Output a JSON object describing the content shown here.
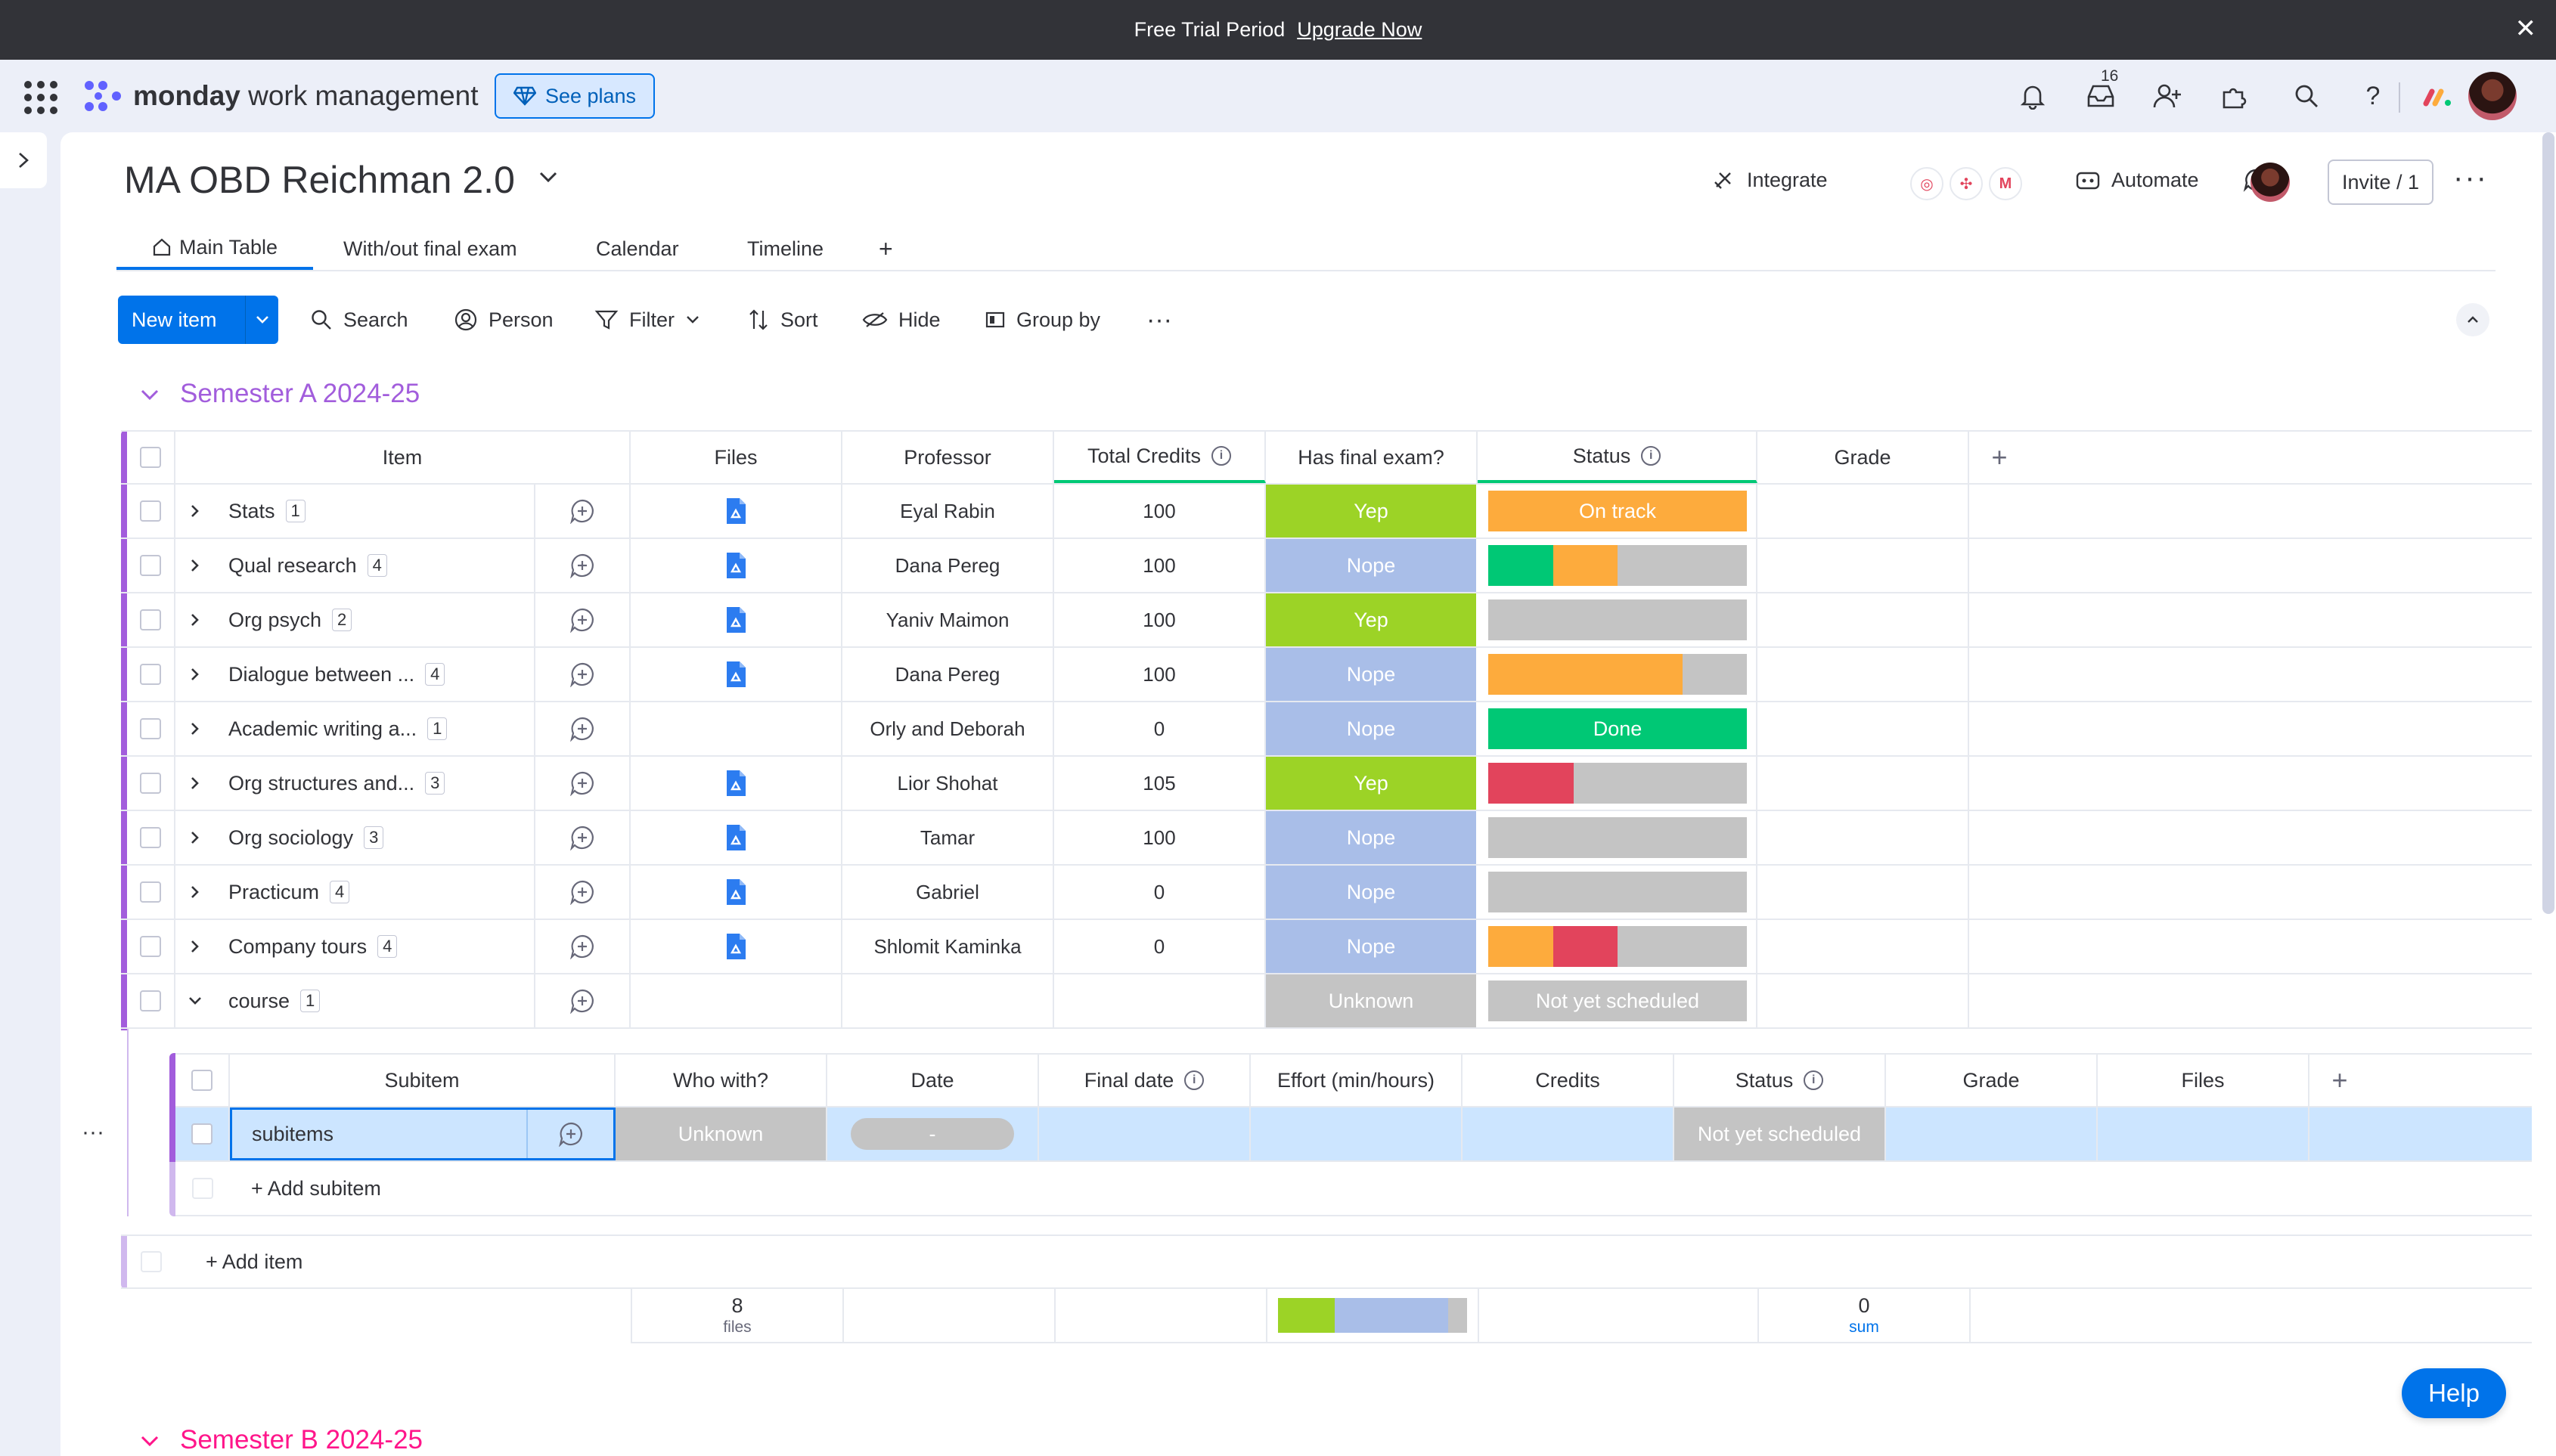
{
  "trial_banner": {
    "text": "Free Trial Period",
    "link": "Upgrade Now"
  },
  "topnav": {
    "brand_bold": "monday",
    "brand_rest": " work management",
    "see_plans": "See plans",
    "inbox_badge": "16",
    "icons": [
      "apps-grid-icon",
      "bell-icon",
      "inbox-icon",
      "invite-members-icon",
      "puzzle-icon",
      "search-icon",
      "help-icon",
      "monday-logo-icon"
    ]
  },
  "board": {
    "title": "MA OBD Reichman 2.0",
    "integrate_label": "Integrate",
    "automate_label": "Automate",
    "invite_label": "Invite / 1",
    "tabs": [
      {
        "label": "Main Table"
      },
      {
        "label": "With/out final exam"
      },
      {
        "label": "Calendar"
      },
      {
        "label": "Timeline"
      },
      {
        "label": "+"
      }
    ]
  },
  "toolbar": {
    "new_item": "New item",
    "search": "Search",
    "person": "Person",
    "filter": "Filter",
    "sort": "Sort",
    "hide": "Hide",
    "group_by": "Group by"
  },
  "colors": {
    "accent": "#0073ea",
    "group_a": "#a25ddc",
    "group_b": "#ff158a",
    "green": "#00c875",
    "lime": "#9cd326",
    "orange": "#fdab3d",
    "red": "#e2445c",
    "grey": "#c4c4c4",
    "nope": "#a9bee8"
  },
  "group_a": {
    "title": "Semester A 2024-25",
    "columns": [
      "Item",
      "Files",
      "Professor",
      "Total Credits",
      "Has final exam?",
      "Status",
      "Grade"
    ],
    "rows": [
      {
        "name": "Stats",
        "count": "1",
        "file": true,
        "professor": "Eyal Rabin",
        "credits": "100",
        "exam": "Yep",
        "status_label": "On track",
        "status_color": "orange"
      },
      {
        "name": "Qual research",
        "count": "4",
        "file": true,
        "professor": "Dana Pereg",
        "credits": "100",
        "exam": "Nope",
        "status_label": "",
        "status_segments": [
          [
            "green",
            0.25
          ],
          [
            "orange",
            0.25
          ],
          [
            "grey",
            0.5
          ]
        ]
      },
      {
        "name": "Org psych",
        "count": "2",
        "file": true,
        "professor": "Yaniv Maimon",
        "credits": "100",
        "exam": "Yep",
        "status_label": "",
        "status_segments": [
          [
            "grey",
            1
          ]
        ]
      },
      {
        "name": "Dialogue between ...",
        "count": "4",
        "file": true,
        "professor": "Dana Pereg",
        "credits": "100",
        "exam": "Nope",
        "status_label": "",
        "status_segments": [
          [
            "orange",
            0.75
          ],
          [
            "grey",
            0.25
          ]
        ]
      },
      {
        "name": "Academic writing a...",
        "count": "1",
        "file": false,
        "professor": "Orly and Deborah",
        "credits": "0",
        "exam": "Nope",
        "status_label": "Done",
        "status_color": "green"
      },
      {
        "name": "Org structures and...",
        "count": "3",
        "file": true,
        "professor": "Lior Shohat",
        "credits": "105",
        "exam": "Yep",
        "status_label": "",
        "status_segments": [
          [
            "red",
            0.33
          ],
          [
            "grey",
            0.67
          ]
        ]
      },
      {
        "name": "Org sociology",
        "count": "3",
        "file": true,
        "professor": "Tamar",
        "credits": "100",
        "exam": "Nope",
        "status_label": "",
        "status_segments": [
          [
            "grey",
            1
          ]
        ]
      },
      {
        "name": "Practicum",
        "count": "4",
        "file": true,
        "professor": "Gabriel",
        "credits": "0",
        "exam": "Nope",
        "status_label": "",
        "status_segments": [
          [
            "grey",
            1
          ]
        ]
      },
      {
        "name": "Company tours",
        "count": "4",
        "file": true,
        "professor": "Shlomit Kaminka",
        "credits": "0",
        "exam": "Nope",
        "status_label": "",
        "status_segments": [
          [
            "orange",
            0.25
          ],
          [
            "red",
            0.25
          ],
          [
            "grey",
            0.5
          ]
        ]
      },
      {
        "name": "course",
        "count": "1",
        "file": false,
        "professor": "",
        "credits": "",
        "exam": "Unknown",
        "status_label": "Not yet scheduled",
        "status_color": "grey",
        "expanded": true
      }
    ],
    "subitems": {
      "columns": [
        "Subitem",
        "Who with?",
        "Date",
        "Final date",
        "Effort (min/hours)",
        "Credits",
        "Status",
        "Grade",
        "Files"
      ],
      "rows": [
        {
          "name": "subitems",
          "who": "Unknown",
          "date": "-",
          "status": "Not yet scheduled"
        }
      ],
      "add_label": "+ Add subitem"
    },
    "add_item_label": "+ Add item",
    "summary": {
      "files_count": "8",
      "files_label": "files",
      "exam_distribution": [
        [
          "lime",
          0.3
        ],
        [
          "nope",
          0.6
        ],
        [
          "grey",
          0.1
        ]
      ],
      "grade_sum": "0",
      "grade_sum_label": "sum"
    }
  },
  "group_b": {
    "title": "Semester B 2024-25"
  },
  "help": {
    "label": "Help"
  }
}
